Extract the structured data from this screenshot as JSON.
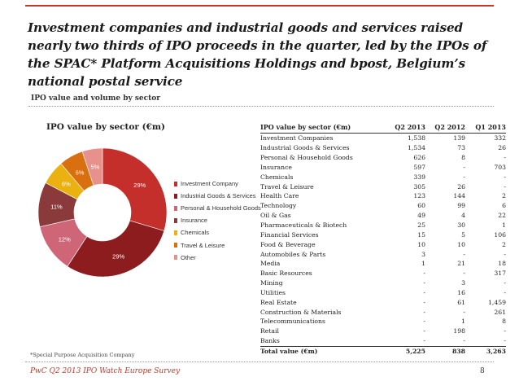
{
  "page": {
    "title": "Investment companies and industrial goods and services raised nearly two thirds of IPO proceeds in the quarter, led by the IPOs of the SPAC* Platform Acquisitions Holdings and bpost, Belgium’s national postal service",
    "subtitle": "IPO value and volume by sector",
    "footnote": "*Special Purpose Acquisition Company",
    "footer": "PwC Q2 2013 IPO Watch Europe Survey",
    "page_number": "8"
  },
  "chart_data": [
    {
      "type": "pie",
      "style": "donut",
      "title": "IPO value by sector (€m)",
      "legend_position": "right",
      "slices": [
        {
          "name": "Investment Company",
          "label": "29%",
          "value": 29,
          "color": "#c52f2b"
        },
        {
          "name": "Industrial Goods & Services",
          "label": "29%",
          "value": 29,
          "color": "#8c1c1e"
        },
        {
          "name": "Personal & Household Goods",
          "label": "12%",
          "value": 12,
          "color": "#cf6677"
        },
        {
          "name": "Insurance",
          "label": "11%",
          "value": 11,
          "color": "#8a3a3a"
        },
        {
          "name": "Chemicals",
          "label": "6%",
          "value": 6,
          "color": "#ebb111"
        },
        {
          "name": "Travel & Leisure",
          "label": "6%",
          "value": 6,
          "color": "#d9700f"
        },
        {
          "name": "Other",
          "label": "5%",
          "value": 5,
          "color": "#e8918c"
        }
      ]
    },
    {
      "type": "table",
      "header": [
        "IPO value by sector (€m)",
        "Q2 2013",
        "Q2 2012",
        "Q1 2013"
      ],
      "rows": [
        [
          "Investment Companies",
          "1,538",
          "139",
          "332"
        ],
        [
          "Industrial Goods & Services",
          "1,534",
          "73",
          "26"
        ],
        [
          "Personal & Household Goods",
          "626",
          "8",
          "-"
        ],
        [
          "Insurance",
          "597",
          "-",
          "703"
        ],
        [
          "Chemicals",
          "339",
          "-",
          "-"
        ],
        [
          "Travel & Leisure",
          "305",
          "26",
          "-"
        ],
        [
          "Health Care",
          "123",
          "144",
          "2"
        ],
        [
          "Technology",
          "60",
          "99",
          "6"
        ],
        [
          "Oil & Gas",
          "49",
          "4",
          "22"
        ],
        [
          "Pharmaceuticals & Biotech",
          "25",
          "30",
          "1"
        ],
        [
          "Financial Services",
          "15",
          "5",
          "106"
        ],
        [
          "Food & Beverage",
          "10",
          "10",
          "2"
        ],
        [
          "Automobiles & Parts",
          "3",
          "-",
          "-"
        ],
        [
          "Media",
          "1",
          "21",
          "18"
        ],
        [
          "Basic Resources",
          "-",
          "-",
          "317"
        ],
        [
          "Mining",
          "-",
          "3",
          "-"
        ],
        [
          "Utilities",
          "-",
          "16",
          "-"
        ],
        [
          "Real Estate",
          "-",
          "61",
          "1,459"
        ],
        [
          "Construction & Materials",
          "-",
          "-",
          "261"
        ],
        [
          "Telecommunications",
          "-",
          "1",
          "8"
        ],
        [
          "Retail",
          "-",
          "198",
          "-"
        ],
        [
          "Banks",
          "-",
          "-",
          "-"
        ]
      ],
      "total": [
        "Total value (€m)",
        "5,225",
        "838",
        "3,263"
      ]
    }
  ]
}
